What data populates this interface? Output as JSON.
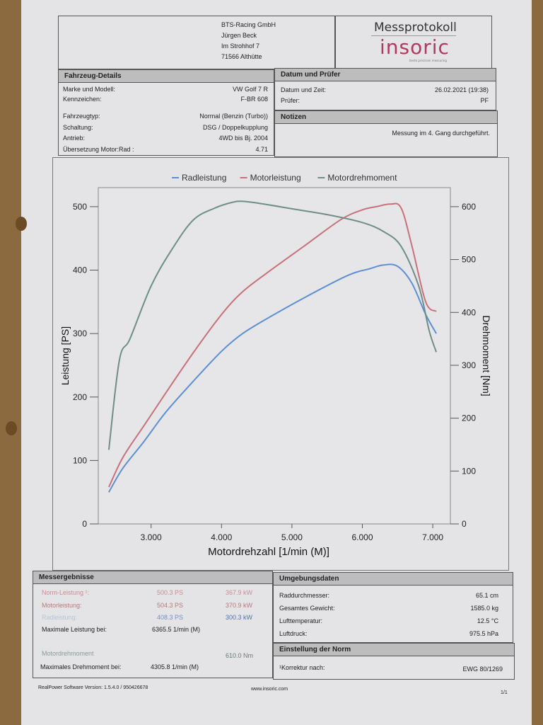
{
  "address": {
    "company": "BTS-Racing GmbH",
    "person": "Jürgen Beck",
    "street": "Im Strohhof 7",
    "city": "71566 Althütte"
  },
  "logo": {
    "title": "Messprotokoll",
    "brand": "insoric",
    "tagline": "beste precision measuring"
  },
  "vehicle": {
    "header": "Fahrzeug-Details",
    "rows": [
      {
        "label": "Marke und Modell:",
        "value": "VW Golf 7 R"
      },
      {
        "label": "Kennzeichen:",
        "value": "F-BR 608"
      },
      {
        "label": "Fahrzeugtyp:",
        "value": "Normal (Benzin (Turbo))"
      },
      {
        "label": "Schaltung:",
        "value": "DSG / Doppelkupplung"
      },
      {
        "label": "Antrieb:",
        "value": "4WD bis Bj. 2004"
      },
      {
        "label": "Übersetzung Motor:Rad :",
        "value": "4.71"
      }
    ]
  },
  "date_tester": {
    "header": "Datum und Prüfer",
    "rows": [
      {
        "label": "Datum und Zeit:",
        "value": "26.02.2021 (19:38)"
      },
      {
        "label": "Prüfer:",
        "value": "PF"
      }
    ]
  },
  "notes": {
    "header": "Notizen",
    "text": "Messung im 4. Gang durchgeführt."
  },
  "colors": {
    "rad": "#5b8fd6",
    "motor": "#c9707a",
    "torque": "#6e8f86"
  },
  "chart_data": {
    "type": "line",
    "legend": [
      "Radleistung",
      "Motorleistung",
      "Motordrehmoment"
    ],
    "xlabel": "Motordrehzahl [1/min (M)]",
    "ylabel": "Leistung [PS]",
    "y2label": "Drehmoment [Nm]",
    "xlim": [
      2250,
      7250
    ],
    "ylim": [
      0,
      530
    ],
    "y2lim": [
      0,
      636
    ],
    "xticks": [
      "3.000",
      "4.000",
      "5.000",
      "6.000",
      "7.000"
    ],
    "xtick_values": [
      3000,
      4000,
      5000,
      6000,
      7000
    ],
    "yticks": [
      "0",
      "100",
      "200",
      "300",
      "400",
      "500"
    ],
    "ytick_values": [
      0,
      100,
      200,
      300,
      400,
      500
    ],
    "y2ticks": [
      "0",
      "100",
      "200",
      "300",
      "400",
      "500",
      "600"
    ],
    "y2tick_values": [
      0,
      100,
      200,
      300,
      400,
      500,
      600
    ],
    "series": [
      {
        "name": "Radleistung",
        "axis": "left",
        "x": [
          2400,
          2600,
          2900,
          3200,
          3600,
          4000,
          4300,
          4700,
          5200,
          5800,
          6100,
          6300,
          6500,
          6700,
          6900,
          7050
        ],
        "y": [
          50,
          88,
          130,
          175,
          225,
          272,
          300,
          327,
          358,
          392,
          402,
          408,
          406,
          380,
          330,
          300
        ]
      },
      {
        "name": "Motorleistung",
        "axis": "left",
        "x": [
          2400,
          2600,
          2900,
          3200,
          3600,
          4000,
          4300,
          4700,
          5200,
          5700,
          6000,
          6200,
          6400,
          6550,
          6700,
          6900,
          7050
        ],
        "y": [
          58,
          105,
          155,
          205,
          270,
          330,
          366,
          400,
          440,
          480,
          495,
          500,
          504,
          498,
          440,
          350,
          335
        ]
      },
      {
        "name": "Motordrehmoment",
        "axis": "right",
        "x": [
          2400,
          2550,
          2700,
          3000,
          3300,
          3600,
          3900,
          4150,
          4306,
          4600,
          5000,
          5500,
          6000,
          6300,
          6550,
          6800,
          6950,
          7050
        ],
        "y": [
          140,
          310,
          350,
          450,
          520,
          575,
          597,
          608,
          610,
          605,
          596,
          585,
          570,
          553,
          525,
          450,
          365,
          325
        ]
      }
    ]
  },
  "results": {
    "header": "Messergebnisse",
    "norm_label": "Norm-Leistung ¹:",
    "norm_ps": "500.3 PS",
    "norm_kw": "367.9 kW",
    "motor_label": "Motorleistung:",
    "motor_ps": "504.3 PS",
    "motor_kw": "370.9 kW",
    "rad_label": "Radleistung:",
    "rad_ps": "408.3 PS",
    "rad_kw": "300.3 kW",
    "max_power_label": "Maximale Leistung bei:",
    "max_power_value": "6365.5 1/min (M)",
    "torque_label": "Motordrehmoment",
    "torque_value": "610.0 Nm",
    "max_torque_label": "Maximales Drehmoment bei:",
    "max_torque_value": "4305.8 1/min (M)"
  },
  "environment": {
    "header": "Umgebungsdaten",
    "rows": [
      {
        "label": "Raddurchmesser:",
        "value": "65.1 cm"
      },
      {
        "label": "Gesamtes Gewicht:",
        "value": "1585.0 kg"
      },
      {
        "label": "Lufttemperatur:",
        "value": "12.5 °C"
      },
      {
        "label": "Luftdruck:",
        "value": "975.5 hPa"
      }
    ]
  },
  "norm": {
    "header": "Einstellung der Norm",
    "label": "¹Korrektur nach:",
    "value": "EWG 80/1269"
  },
  "footer": {
    "software": "RealPower Software Version: 1.5.4.0 / 950426678",
    "url": "www.insoric.com",
    "page": "1/1"
  }
}
